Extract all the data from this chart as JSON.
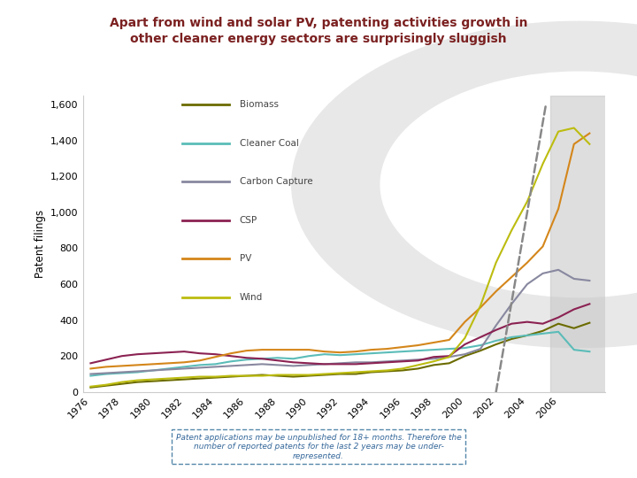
{
  "title_line1": "Apart from wind and solar PV, patenting activities growth in",
  "title_line2": "other cleaner energy sectors are surprisingly sluggish",
  "title_color": "#7B2020",
  "ylabel": "Patent filings",
  "background_color": "#ffffff",
  "shade_start_x": 2005.5,
  "shade_end_x": 2008.5,
  "note_text": "Patent applications may be unpublished for 18+ months. Therefore the\nnumber of reported patents for the last 2 years may be under-\nrepresented.",
  "years": [
    1976,
    1977,
    1978,
    1979,
    1980,
    1981,
    1982,
    1983,
    1984,
    1985,
    1986,
    1987,
    1988,
    1989,
    1990,
    1991,
    1992,
    1993,
    1994,
    1995,
    1996,
    1997,
    1998,
    1999,
    2000,
    2001,
    2002,
    2003,
    2004,
    2005,
    2006,
    2007,
    2008
  ],
  "series": {
    "Biomass": {
      "color": "#6B6B00",
      "data": [
        25,
        35,
        45,
        55,
        60,
        65,
        70,
        75,
        80,
        85,
        90,
        95,
        90,
        85,
        90,
        95,
        100,
        100,
        110,
        115,
        120,
        130,
        150,
        160,
        200,
        230,
        265,
        295,
        315,
        340,
        380,
        355,
        385
      ]
    },
    "Cleaner Coal": {
      "color": "#5BBCB8",
      "data": [
        90,
        100,
        105,
        110,
        120,
        130,
        140,
        150,
        155,
        170,
        180,
        185,
        190,
        185,
        200,
        210,
        205,
        210,
        215,
        220,
        225,
        230,
        235,
        240,
        245,
        260,
        285,
        305,
        315,
        325,
        335,
        235,
        225
      ]
    },
    "Carbon Capture": {
      "color": "#8888A0",
      "data": [
        100,
        105,
        110,
        115,
        120,
        125,
        130,
        135,
        140,
        145,
        150,
        155,
        150,
        145,
        150,
        155,
        160,
        165,
        165,
        170,
        175,
        180,
        185,
        195,
        210,
        240,
        370,
        490,
        600,
        660,
        680,
        630,
        620
      ]
    },
    "CSP": {
      "color": "#8B2252",
      "data": [
        160,
        180,
        200,
        210,
        215,
        220,
        225,
        215,
        210,
        200,
        190,
        185,
        175,
        165,
        160,
        155,
        155,
        155,
        160,
        165,
        170,
        175,
        195,
        200,
        265,
        305,
        345,
        380,
        390,
        380,
        415,
        460,
        490
      ]
    },
    "PV": {
      "color": "#D4861A",
      "data": [
        130,
        140,
        145,
        150,
        155,
        160,
        165,
        175,
        195,
        215,
        230,
        235,
        235,
        235,
        235,
        225,
        220,
        225,
        235,
        240,
        250,
        260,
        275,
        290,
        390,
        470,
        560,
        640,
        720,
        810,
        1020,
        1380,
        1440
      ]
    },
    "Wind": {
      "color": "#BCBC10",
      "data": [
        30,
        40,
        55,
        65,
        70,
        75,
        80,
        85,
        85,
        90,
        90,
        90,
        95,
        95,
        95,
        100,
        105,
        110,
        115,
        120,
        130,
        150,
        170,
        195,
        300,
        480,
        720,
        900,
        1060,
        1270,
        1450,
        1470,
        1380
      ]
    }
  },
  "xtick_years": [
    1976,
    1978,
    1980,
    1982,
    1984,
    1986,
    1988,
    1990,
    1992,
    1994,
    1996,
    1998,
    2000,
    2002,
    2004,
    2006
  ],
  "yticks": [
    0,
    200,
    400,
    600,
    800,
    1000,
    1200,
    1400,
    1600
  ],
  "ylim": [
    0,
    1650
  ],
  "xlim_left": 1975.5,
  "xlim_right": 2009.0,
  "dashed_x0": 2002.0,
  "dashed_y0": 0,
  "dashed_x1": 2005.2,
  "dashed_y1": 1600,
  "legend_items": [
    "Biomass",
    "Cleaner Coal",
    "Carbon Capture",
    "CSP",
    "PV",
    "Wind"
  ],
  "legend_colors": [
    "#6B6B00",
    "#5BBCB8",
    "#8888A0",
    "#8B2252",
    "#D4861A",
    "#BCBC10"
  ]
}
